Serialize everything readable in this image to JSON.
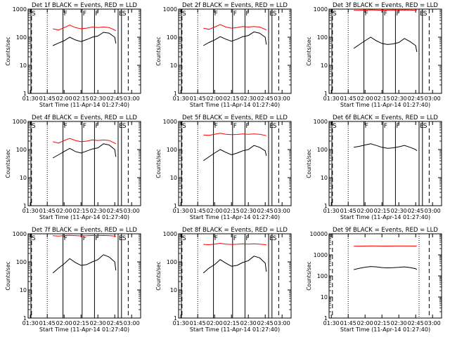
{
  "colors": {
    "events": "#000000",
    "lld": "#ff0000",
    "axis": "#000000"
  },
  "chart_data": {
    "type": "line",
    "layout": "3x3 grid of panels",
    "shared": {
      "xlabel": "Start Time (11-Apr-14 01:27:40)",
      "ylabel": "Counts/sec",
      "x_ticks": [
        "01:30",
        "01:45",
        "02:00",
        "02:15",
        "02:30",
        "02:45",
        "03:00"
      ],
      "x_tick_minutes": [
        90,
        105,
        120,
        135,
        150,
        165,
        180
      ],
      "xlim_minutes": [
        88,
        188
      ],
      "y_scale": "log",
      "y_ticks": [
        "1",
        "10",
        "100",
        "1000"
      ],
      "y_tick_values": [
        1,
        10,
        100,
        1000
      ],
      "ylim": [
        1,
        1000
      ],
      "grid": false,
      "series_legend_in_title": "BLACK = Events, RED = LLD",
      "dotted_lines_minutes": [
        105,
        168
      ],
      "dashed_lines_minutes": [
        91,
        177,
        188
      ]
    },
    "panels": [
      {
        "title": "Det 1f BLACK = Events, RED = LLD",
        "ylim": [
          1,
          1000
        ],
        "y_ticks": [
          "1",
          "10",
          "100",
          "1000"
        ],
        "y_tick_values": [
          1,
          10,
          100,
          1000
        ],
        "x": [
          110,
          115,
          120,
          125,
          130,
          135,
          140,
          145,
          150,
          155,
          160,
          165,
          166
        ],
        "events": [
          50,
          62,
          75,
          100,
          80,
          70,
          82,
          100,
          110,
          150,
          140,
          100,
          60
        ],
        "lld": [
          200,
          180,
          220,
          270,
          220,
          200,
          210,
          230,
          220,
          230,
          220,
          180,
          170
        ],
        "markers": [
          {
            "min": 90.5,
            "label": "S"
          },
          {
            "min": 119,
            "label": "F"
          },
          {
            "min": 136,
            "label": "F"
          },
          {
            "min": 147,
            "label": "F"
          },
          {
            "min": 168,
            "label": "E"
          },
          {
            "min": 171,
            "label": "S"
          }
        ]
      },
      {
        "title": "Det 2f BLACK = Events, RED = LLD",
        "ylim": [
          1,
          1000
        ],
        "y_ticks": [
          "1",
          "10",
          "100",
          "1000"
        ],
        "y_tick_values": [
          1,
          10,
          100,
          1000
        ],
        "x": [
          110,
          115,
          120,
          125,
          130,
          135,
          140,
          145,
          150,
          155,
          160,
          165,
          166
        ],
        "events": [
          50,
          65,
          80,
          105,
          85,
          72,
          85,
          105,
          115,
          155,
          140,
          100,
          55
        ],
        "lld": [
          210,
          190,
          230,
          280,
          230,
          210,
          220,
          240,
          230,
          240,
          230,
          190,
          180
        ],
        "markers": [
          {
            "min": 90.5,
            "label": "S"
          },
          {
            "min": 119,
            "label": "F"
          },
          {
            "min": 136,
            "label": "F"
          },
          {
            "min": 147,
            "label": "F"
          },
          {
            "min": 168,
            "label": "E"
          },
          {
            "min": 171,
            "label": "S"
          }
        ]
      },
      {
        "title": "Det 3f BLACK = Events, RED = LLD",
        "ylim": [
          1,
          1000
        ],
        "y_ticks": [
          "1",
          "10",
          "100",
          "1000"
        ],
        "y_tick_values": [
          1,
          10,
          100,
          1000
        ],
        "x": [
          110,
          115,
          120,
          125,
          130,
          135,
          140,
          145,
          150,
          155,
          160,
          165,
          166
        ],
        "events": [
          40,
          55,
          75,
          100,
          75,
          60,
          55,
          58,
          65,
          90,
          70,
          50,
          30
        ],
        "lld": [
          900,
          900,
          920,
          940,
          920,
          910,
          920,
          930,
          920,
          930,
          920,
          900,
          920
        ],
        "markers": [
          {
            "min": 90.5,
            "label": "S"
          },
          {
            "min": 119,
            "label": "F"
          },
          {
            "min": 136,
            "label": "F"
          },
          {
            "min": 147,
            "label": "F"
          },
          {
            "min": 168,
            "label": "E"
          },
          {
            "min": 171,
            "label": "S"
          }
        ]
      },
      {
        "title": "Det 4f BLACK = Events, RED = LLD",
        "ylim": [
          1,
          1000
        ],
        "y_ticks": [
          "1",
          "10",
          "100",
          "1000"
        ],
        "y_tick_values": [
          1,
          10,
          100,
          1000
        ],
        "x": [
          110,
          115,
          120,
          125,
          130,
          135,
          140,
          145,
          150,
          155,
          160,
          165,
          166
        ],
        "events": [
          50,
          65,
          85,
          110,
          85,
          75,
          88,
          105,
          115,
          160,
          145,
          100,
          55
        ],
        "lld": [
          190,
          170,
          210,
          250,
          210,
          190,
          200,
          220,
          210,
          220,
          210,
          170,
          160
        ],
        "markers": [
          {
            "min": 90.5,
            "label": "S"
          },
          {
            "min": 119,
            "label": "F"
          },
          {
            "min": 136,
            "label": "F"
          },
          {
            "min": 147,
            "label": "F"
          },
          {
            "min": 168,
            "label": "E"
          },
          {
            "min": 171,
            "label": "S"
          }
        ]
      },
      {
        "title": "Det 5f BLACK = Events, RED = LLD",
        "ylim": [
          1,
          1000
        ],
        "y_ticks": [
          "1",
          "10",
          "100",
          "1000"
        ],
        "y_tick_values": [
          1,
          10,
          100,
          1000
        ],
        "x": [
          110,
          115,
          120,
          125,
          130,
          135,
          140,
          145,
          150,
          155,
          160,
          165,
          166
        ],
        "events": [
          40,
          55,
          75,
          100,
          80,
          65,
          75,
          90,
          100,
          140,
          120,
          90,
          60
        ],
        "lld": [
          330,
          320,
          350,
          380,
          350,
          340,
          345,
          360,
          350,
          360,
          350,
          320,
          310
        ],
        "markers": [
          {
            "min": 90.5,
            "label": "S"
          },
          {
            "min": 119,
            "label": "F"
          },
          {
            "min": 136,
            "label": "F"
          },
          {
            "min": 147,
            "label": "F"
          },
          {
            "min": 168,
            "label": "E"
          },
          {
            "min": 171,
            "label": "S"
          }
        ]
      },
      {
        "title": "Det 6f BLACK = Events, RED = LLD",
        "ylim": [
          1,
          1000
        ],
        "y_ticks": [
          "1",
          "10",
          "100",
          "1000"
        ],
        "y_tick_values": [
          1,
          10,
          100,
          1000
        ],
        "x": [
          110,
          115,
          120,
          125,
          130,
          135,
          140,
          145,
          150,
          155,
          160,
          165,
          166
        ],
        "events": [
          120,
          130,
          145,
          160,
          140,
          120,
          110,
          115,
          125,
          140,
          120,
          100,
          90
        ],
        "lld": [],
        "markers": [
          {
            "min": 90.5,
            "label": "S"
          },
          {
            "min": 119,
            "label": "F"
          },
          {
            "min": 136,
            "label": "F"
          },
          {
            "min": 147,
            "label": "F"
          },
          {
            "min": 168,
            "label": "E"
          },
          {
            "min": 171,
            "label": "S"
          }
        ]
      },
      {
        "title": "Det 7f BLACK = Events, RED = LLD",
        "ylim": [
          1,
          1000
        ],
        "y_ticks": [
          "1",
          "10",
          "100",
          "1000"
        ],
        "y_tick_values": [
          1,
          10,
          100,
          1000
        ],
        "x": [
          110,
          115,
          120,
          125,
          130,
          135,
          140,
          145,
          150,
          155,
          160,
          165,
          166
        ],
        "events": [
          40,
          60,
          85,
          130,
          95,
          75,
          80,
          100,
          120,
          180,
          150,
          100,
          50
        ],
        "lld": [
          850,
          830,
          860,
          880,
          860,
          840,
          850,
          870,
          860,
          870,
          860,
          830,
          820
        ],
        "markers": [
          {
            "min": 90.5,
            "label": "S"
          },
          {
            "min": 119,
            "label": "F"
          },
          {
            "min": 136,
            "label": "F"
          },
          {
            "min": 147,
            "label": "F"
          },
          {
            "min": 168,
            "label": "E"
          },
          {
            "min": 171,
            "label": "S"
          }
        ]
      },
      {
        "title": "Det 8f BLACK = Events, RED = LLD",
        "ylim": [
          1,
          1000
        ],
        "y_ticks": [
          "1",
          "10",
          "100",
          "1000"
        ],
        "y_tick_values": [
          1,
          10,
          100,
          1000
        ],
        "x": [
          110,
          115,
          120,
          125,
          130,
          135,
          140,
          145,
          150,
          155,
          160,
          165,
          166
        ],
        "events": [
          40,
          60,
          80,
          120,
          90,
          70,
          75,
          95,
          110,
          160,
          140,
          90,
          45
        ],
        "lld": [
          420,
          410,
          430,
          460,
          430,
          420,
          425,
          440,
          430,
          440,
          430,
          410,
          400
        ],
        "markers": [
          {
            "min": 90.5,
            "label": "S"
          },
          {
            "min": 119,
            "label": "F"
          },
          {
            "min": 136,
            "label": "F"
          },
          {
            "min": 147,
            "label": "F"
          },
          {
            "min": 168,
            "label": "E"
          },
          {
            "min": 171,
            "label": "S"
          }
        ]
      },
      {
        "title": "Det 9f BLACK = Events, RED = LLD",
        "ylim": [
          1,
          10000
        ],
        "y_ticks": [
          "1",
          "10",
          "100",
          "1000",
          "10000"
        ],
        "y_tick_values": [
          1,
          10,
          100,
          1000,
          10000
        ],
        "x": [
          110,
          115,
          120,
          125,
          130,
          135,
          140,
          145,
          150,
          155,
          160,
          165,
          166
        ],
        "events": [
          200,
          230,
          260,
          280,
          270,
          250,
          240,
          245,
          255,
          270,
          250,
          220,
          200
        ],
        "lld": [
          2600,
          2600,
          2620,
          2650,
          2630,
          2610,
          2620,
          2640,
          2630,
          2640,
          2630,
          2610,
          2650
        ],
        "markers": []
      }
    ]
  }
}
